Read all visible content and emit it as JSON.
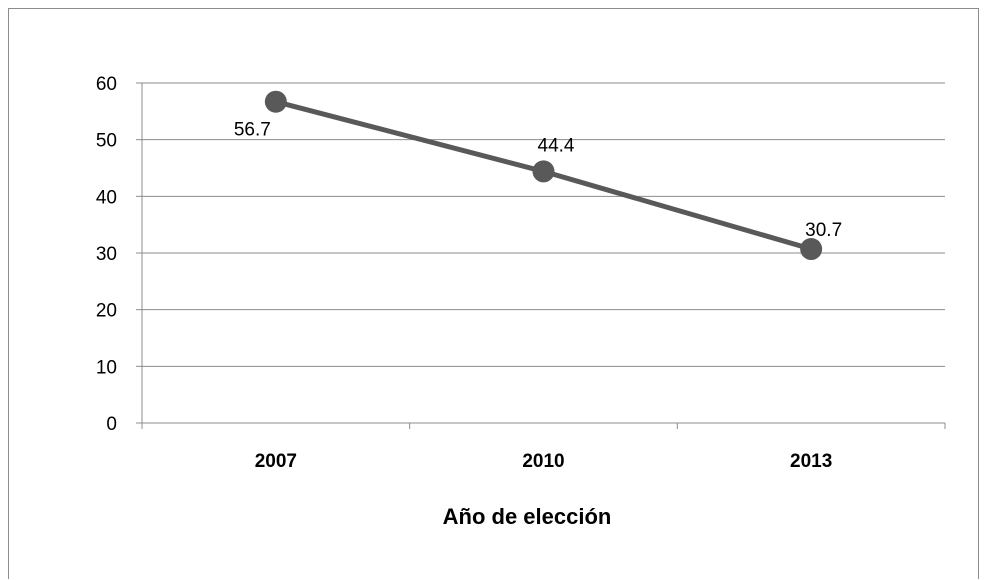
{
  "chart_data": {
    "type": "line",
    "title": "",
    "xlabel": "Año de elección",
    "ylabel": "",
    "categories": [
      "2007",
      "2010",
      "2013"
    ],
    "series": [
      {
        "values": [
          56.7,
          44.4,
          30.7
        ],
        "data_labels": [
          "56.7",
          "44.4",
          "30.7"
        ]
      }
    ],
    "ylim": [
      0,
      60
    ],
    "yticks": [
      "0",
      "10",
      "20",
      "30",
      "40",
      "50",
      "60"
    ],
    "grid": true,
    "legend": "none",
    "colors": {
      "line": "#595959",
      "marker": "#595959",
      "grid": "#8c8c8c"
    }
  }
}
